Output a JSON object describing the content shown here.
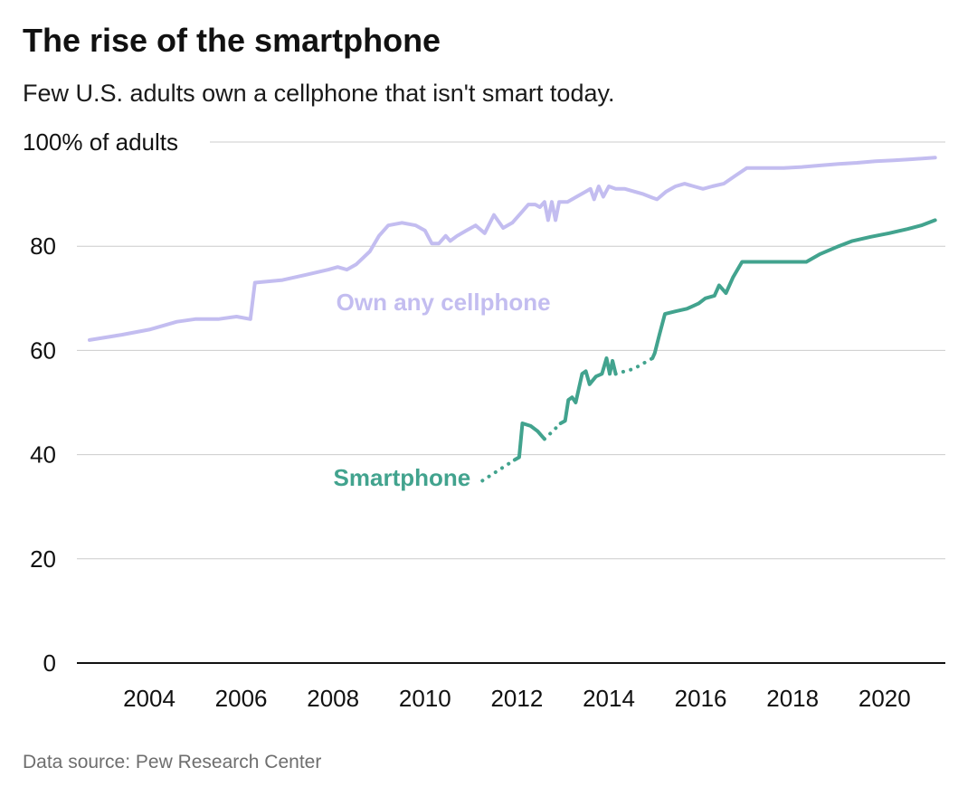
{
  "header": {
    "title": "The rise of the smartphone",
    "subtitle": "Few U.S. adults own a cellphone that isn't smart today."
  },
  "footer": {
    "source": "Data source: Pew Research Center"
  },
  "chart_data": {
    "type": "line",
    "title": "The rise of the smartphone",
    "subtitle": "Few U.S. adults own a cellphone that isn't smart today.",
    "xlabel": "",
    "ylabel": "% of adults",
    "x_axis": {
      "range": [
        2002.4,
        2021.3
      ],
      "ticks": [
        2004,
        2006,
        2008,
        2010,
        2012,
        2014,
        2016,
        2018,
        2020
      ]
    },
    "y_axis": {
      "range": [
        0,
        100
      ],
      "ticks": [
        0,
        20,
        40,
        60,
        80,
        100
      ],
      "top_label": "100% of adults"
    },
    "grid": "horizontal",
    "legend_position": "inline-labels",
    "series": [
      {
        "name": "Own any cellphone",
        "slug": "cellphone",
        "color": "#c3bdf0",
        "label_pos": {
          "x": 2010.4,
          "y": 69.3
        },
        "segments": [
          {
            "style": "solid",
            "points": [
              [
                2002.7,
                62
              ],
              [
                2003.4,
                63
              ],
              [
                2004.0,
                64
              ],
              [
                2004.6,
                65.5
              ],
              [
                2005.0,
                66
              ],
              [
                2005.5,
                66
              ],
              [
                2005.9,
                66.5
              ],
              [
                2006.2,
                66
              ],
              [
                2006.3,
                73
              ],
              [
                2006.9,
                73.5
              ],
              [
                2007.4,
                74.5
              ],
              [
                2007.9,
                75.5
              ],
              [
                2008.1,
                76
              ],
              [
                2008.3,
                75.5
              ],
              [
                2008.5,
                76.5
              ],
              [
                2008.8,
                79
              ],
              [
                2009.0,
                82
              ],
              [
                2009.2,
                84
              ],
              [
                2009.5,
                84.5
              ],
              [
                2009.8,
                84
              ],
              [
                2010.0,
                83
              ],
              [
                2010.15,
                80.5
              ],
              [
                2010.3,
                80.5
              ],
              [
                2010.45,
                82
              ],
              [
                2010.55,
                81
              ],
              [
                2010.7,
                82
              ],
              [
                2010.9,
                83
              ],
              [
                2011.1,
                84
              ],
              [
                2011.3,
                82.5
              ],
              [
                2011.5,
                86
              ],
              [
                2011.7,
                83.5
              ],
              [
                2011.9,
                84.5
              ],
              [
                2012.1,
                86.5
              ],
              [
                2012.25,
                88
              ],
              [
                2012.4,
                88
              ],
              [
                2012.5,
                87.5
              ],
              [
                2012.6,
                88.5
              ],
              [
                2012.68,
                85
              ],
              [
                2012.76,
                88.5
              ],
              [
                2012.84,
                85
              ],
              [
                2012.92,
                88.5
              ],
              [
                2013.1,
                88.5
              ],
              [
                2013.3,
                89.5
              ],
              [
                2013.5,
                90.5
              ],
              [
                2013.6,
                91
              ],
              [
                2013.68,
                89
              ],
              [
                2013.78,
                91.5
              ],
              [
                2013.88,
                89.5
              ],
              [
                2014.0,
                91.5
              ],
              [
                2014.15,
                91
              ],
              [
                2014.35,
                91
              ],
              [
                2014.55,
                90.5
              ],
              [
                2014.75,
                90
              ],
              [
                2014.95,
                89.3
              ],
              [
                2015.05,
                89
              ],
              [
                2015.25,
                90.5
              ],
              [
                2015.45,
                91.5
              ],
              [
                2015.65,
                92
              ],
              [
                2015.85,
                91.5
              ],
              [
                2016.05,
                91
              ],
              [
                2016.25,
                91.5
              ],
              [
                2016.5,
                92
              ],
              [
                2016.75,
                93.5
              ],
              [
                2017.0,
                95
              ],
              [
                2017.4,
                95
              ],
              [
                2017.8,
                95
              ],
              [
                2018.2,
                95.2
              ],
              [
                2018.6,
                95.5
              ],
              [
                2019.0,
                95.8
              ],
              [
                2019.4,
                96
              ],
              [
                2019.8,
                96.3
              ],
              [
                2020.2,
                96.5
              ],
              [
                2020.6,
                96.7
              ],
              [
                2021.1,
                97
              ]
            ]
          }
        ]
      },
      {
        "name": "Smartphone",
        "slug": "smartphone",
        "color": "#42a38e",
        "label_pos": {
          "x": 2009.5,
          "y": 35.6
        },
        "segments": [
          {
            "style": "dotted",
            "points": [
              [
                2011.25,
                35
              ],
              [
                2011.6,
                37
              ],
              [
                2011.95,
                39
              ]
            ]
          },
          {
            "style": "solid",
            "points": [
              [
                2011.95,
                39
              ],
              [
                2012.05,
                39.5
              ],
              [
                2012.12,
                46
              ],
              [
                2012.3,
                45.5
              ],
              [
                2012.45,
                44.5
              ],
              [
                2012.55,
                43.5
              ],
              [
                2012.6,
                43
              ]
            ]
          },
          {
            "style": "dotted",
            "points": [
              [
                2012.6,
                43
              ],
              [
                2012.78,
                44.5
              ],
              [
                2012.95,
                46
              ]
            ]
          },
          {
            "style": "solid",
            "points": [
              [
                2012.95,
                46
              ],
              [
                2013.05,
                46.5
              ],
              [
                2013.12,
                50.5
              ],
              [
                2013.2,
                51
              ],
              [
                2013.28,
                50
              ],
              [
                2013.42,
                55.5
              ],
              [
                2013.5,
                56
              ],
              [
                2013.58,
                53.5
              ],
              [
                2013.72,
                55
              ],
              [
                2013.85,
                55.5
              ],
              [
                2013.95,
                58.5
              ],
              [
                2014.02,
                55.5
              ],
              [
                2014.08,
                58
              ],
              [
                2014.15,
                55.5
              ]
            ]
          },
          {
            "style": "dotted",
            "points": [
              [
                2014.15,
                55.5
              ],
              [
                2014.55,
                56.5
              ],
              [
                2014.95,
                58.5
              ]
            ]
          },
          {
            "style": "solid",
            "points": [
              [
                2014.95,
                58.5
              ],
              [
                2015.0,
                59.5
              ],
              [
                2015.1,
                63
              ],
              [
                2015.22,
                67
              ],
              [
                2015.45,
                67.5
              ],
              [
                2015.7,
                68
              ],
              [
                2015.95,
                69
              ],
              [
                2016.1,
                70
              ],
              [
                2016.3,
                70.5
              ],
              [
                2016.4,
                72.5
              ],
              [
                2016.55,
                71
              ],
              [
                2016.7,
                74
              ],
              [
                2016.9,
                77
              ],
              [
                2017.2,
                77
              ],
              [
                2017.6,
                77
              ],
              [
                2018.0,
                77
              ],
              [
                2018.3,
                77
              ],
              [
                2018.6,
                78.5
              ],
              [
                2019.0,
                80
              ],
              [
                2019.3,
                81
              ],
              [
                2019.7,
                81.8
              ],
              [
                2020.1,
                82.5
              ],
              [
                2020.5,
                83.3
              ],
              [
                2020.8,
                84
              ],
              [
                2021.1,
                85
              ]
            ]
          }
        ]
      }
    ]
  }
}
